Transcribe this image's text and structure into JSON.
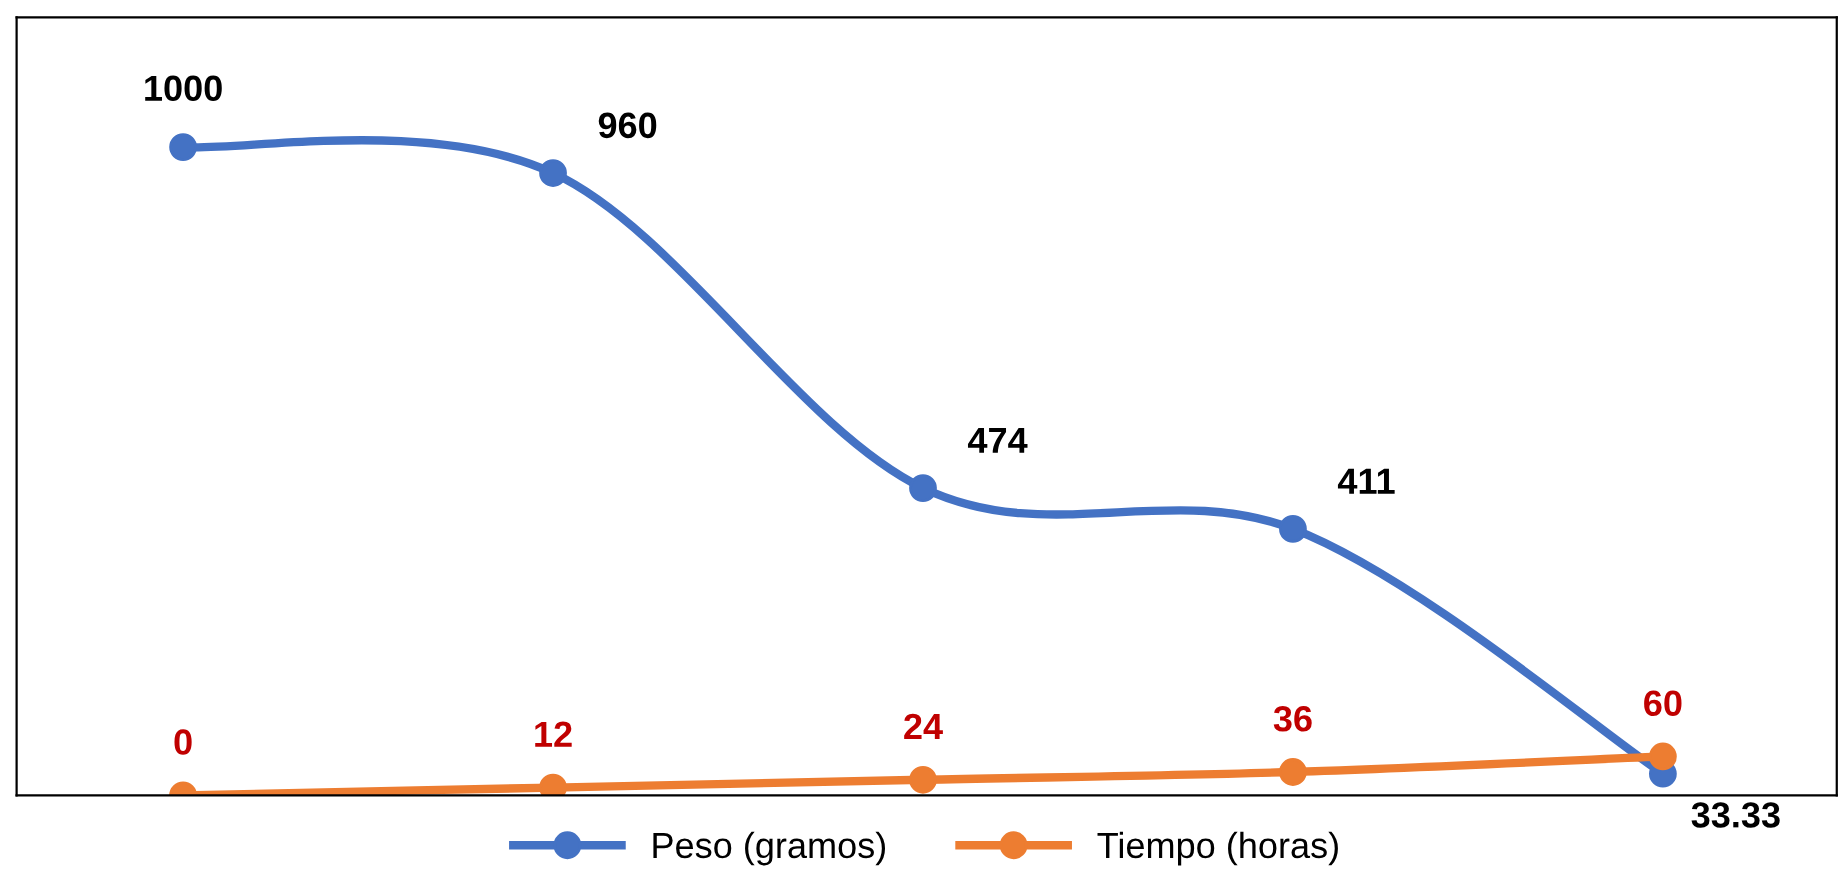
{
  "chart_data": {
    "type": "line",
    "categories": [
      null,
      null,
      null,
      null,
      null
    ],
    "series": [
      {
        "name": "Peso (gramos)",
        "color": "#4472c4",
        "values": [
          1000,
          960,
          474,
          411,
          33.33
        ]
      },
      {
        "name": "Tiempo (horas)",
        "color": "#ed7d31",
        "values": [
          0,
          12,
          24,
          36,
          60
        ]
      }
    ],
    "ylim": [
      0,
      1200
    ],
    "tick_labels": false,
    "data_labels": true,
    "legend": "bottom",
    "marker": "circle",
    "line_style": "solid"
  }
}
